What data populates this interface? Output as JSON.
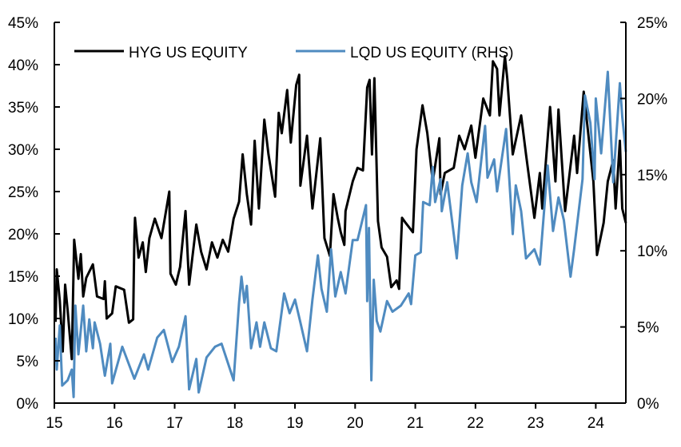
{
  "chart_data": {
    "type": "line",
    "title": "",
    "xlabel": "",
    "ylabel": "",
    "y2label": "",
    "xlim": [
      15,
      24.5
    ],
    "ylim": [
      0,
      45
    ],
    "y2lim": [
      0,
      25
    ],
    "grid": false,
    "legend_position": "top",
    "x_ticks": [
      "15",
      "16",
      "17",
      "18",
      "19",
      "20",
      "21",
      "22",
      "23",
      "24"
    ],
    "x_tick_values": [
      15,
      16,
      17,
      18,
      19,
      20,
      21,
      22,
      23,
      24
    ],
    "y_ticks": [
      "0%",
      "5%",
      "10%",
      "15%",
      "20%",
      "25%",
      "30%",
      "35%",
      "40%",
      "45%"
    ],
    "y_tick_values": [
      0,
      5,
      10,
      15,
      20,
      25,
      30,
      35,
      40,
      45
    ],
    "y2_ticks": [
      "0%",
      "5%",
      "10%",
      "15%",
      "20%",
      "25%"
    ],
    "y2_tick_values": [
      0,
      5,
      10,
      15,
      20,
      25
    ],
    "series": [
      {
        "name": "HYG US EQUITY",
        "axis": "left",
        "color": "#000000",
        "x": [
          15.02,
          15.04,
          15.09,
          15.14,
          15.18,
          15.22,
          15.29,
          15.33,
          15.4,
          15.44,
          15.48,
          15.53,
          15.64,
          15.71,
          15.82,
          15.84,
          15.87,
          15.96,
          16.02,
          16.16,
          16.24,
          16.31,
          16.33,
          16.34,
          16.4,
          16.47,
          16.52,
          16.58,
          16.67,
          16.78,
          16.91,
          16.93,
          17.02,
          17.09,
          17.18,
          17.24,
          17.36,
          17.44,
          17.53,
          17.62,
          17.71,
          17.8,
          17.89,
          17.98,
          18.07,
          18.13,
          18.2,
          18.27,
          18.33,
          18.4,
          18.49,
          18.56,
          18.67,
          18.73,
          18.78,
          18.87,
          18.93,
          19.02,
          19.07,
          19.09,
          19.2,
          19.29,
          19.42,
          19.49,
          19.58,
          19.64,
          19.71,
          19.76,
          19.82,
          19.84,
          19.96,
          20.04,
          20.13,
          20.2,
          20.24,
          20.28,
          20.32,
          20.38,
          20.44,
          20.53,
          20.6,
          20.69,
          20.73,
          20.78,
          20.84,
          20.96,
          21.02,
          21.12,
          21.2,
          21.29,
          21.4,
          21.42,
          21.49,
          21.64,
          21.73,
          21.82,
          21.93,
          22.0,
          22.13,
          22.24,
          22.29,
          22.36,
          22.4,
          22.49,
          22.53,
          22.62,
          22.76,
          22.84,
          22.98,
          23.07,
          23.11,
          23.24,
          23.33,
          23.38,
          23.49,
          23.64,
          23.69,
          23.8,
          23.96,
          24.02,
          24.13,
          24.2,
          24.29,
          24.33,
          24.4,
          24.44,
          24.5
        ],
        "values": [
          9.6,
          15.8,
          12.1,
          6.1,
          14,
          11,
          5.2,
          19.3,
          14.7,
          17.6,
          12.6,
          14.8,
          16.4,
          12.6,
          12.3,
          14.4,
          10,
          10.6,
          13.8,
          13.4,
          9.5,
          9.9,
          19.6,
          21.9,
          17.2,
          19,
          15.5,
          19.5,
          21.8,
          19.5,
          25,
          15.3,
          14,
          16.1,
          22.7,
          14,
          21.1,
          17.9,
          15.8,
          19,
          17.2,
          19.3,
          17.9,
          21.8,
          23.8,
          29.4,
          24.7,
          21.1,
          31,
          23,
          33.5,
          29.4,
          24.4,
          34.3,
          31.9,
          37,
          30.8,
          37.6,
          38.8,
          25.7,
          31.6,
          23,
          31.3,
          19.5,
          17.4,
          24.7,
          21.9,
          20.2,
          18.7,
          22.7,
          26.2,
          27.8,
          27.5,
          37.3,
          38.2,
          29.4,
          38.4,
          21.5,
          18.4,
          17.3,
          13.7,
          14.5,
          13.5,
          21.9,
          21.3,
          20.2,
          30,
          35.2,
          31.9,
          26.2,
          31.3,
          24.7,
          27.2,
          27.8,
          31.6,
          30,
          32.8,
          29,
          36,
          34,
          40.4,
          39.5,
          34,
          41,
          38.3,
          29.4,
          34,
          29.4,
          21.9,
          27.2,
          23,
          35,
          26.2,
          34.7,
          22.7,
          31.6,
          27.2,
          36.8,
          26.2,
          17.5,
          21.3,
          26.2,
          28.7,
          23,
          31,
          23,
          21.3
        ]
      },
      {
        "name": "LQD US EQUITY (RHS)",
        "axis": "right",
        "color": "#4f8bc0",
        "x": [
          15.02,
          15.04,
          15.09,
          15.13,
          15.22,
          15.29,
          15.32,
          15.35,
          15.4,
          15.48,
          15.53,
          15.58,
          15.64,
          15.67,
          15.76,
          15.84,
          15.93,
          15.96,
          16.13,
          16.33,
          16.49,
          16.56,
          16.71,
          16.82,
          16.96,
          17.07,
          17.18,
          17.24,
          17.36,
          17.4,
          17.53,
          17.67,
          17.78,
          17.98,
          18.07,
          18.11,
          18.16,
          18.2,
          18.27,
          18.36,
          18.42,
          18.49,
          18.6,
          18.69,
          18.82,
          18.91,
          19.0,
          19.09,
          19.2,
          19.29,
          19.38,
          19.44,
          19.53,
          19.6,
          19.67,
          19.76,
          19.84,
          19.96,
          20.04,
          20.18,
          20.2,
          20.23,
          20.27,
          20.31,
          20.36,
          20.42,
          20.53,
          20.62,
          20.76,
          20.89,
          20.93,
          21.0,
          21.09,
          21.13,
          21.24,
          21.29,
          21.33,
          21.42,
          21.44,
          21.53,
          21.69,
          21.78,
          21.87,
          21.93,
          22.02,
          22.16,
          22.2,
          22.31,
          22.36,
          22.51,
          22.62,
          22.67,
          22.76,
          22.84,
          22.98,
          23.07,
          23.2,
          23.29,
          23.38,
          23.47,
          23.58,
          23.64,
          23.78,
          23.82,
          23.91,
          23.98,
          24.0,
          24.09,
          24.2,
          24.29,
          24.4,
          24.44,
          24.5
        ],
        "values": [
          4.3,
          2.2,
          5.1,
          1.15,
          1.5,
          2.2,
          0.4,
          6.4,
          3.2,
          6.4,
          3.4,
          5.5,
          3.6,
          5.3,
          3.9,
          1.8,
          3.9,
          1.3,
          3.7,
          1.6,
          3.2,
          2.2,
          4.3,
          4.8,
          2.7,
          3.7,
          5.7,
          0.9,
          2.9,
          0.7,
          3.0,
          3.7,
          3.9,
          1.5,
          6.6,
          8.3,
          6.6,
          7.7,
          3.6,
          5.3,
          3.7,
          5.3,
          3.6,
          3.4,
          7.2,
          5.9,
          6.8,
          5.3,
          3.4,
          6.8,
          9.7,
          7.5,
          6.0,
          10.1,
          7.0,
          8.6,
          7.2,
          10.7,
          10.7,
          13.0,
          6.7,
          11.5,
          1.5,
          8.1,
          5.4,
          4.7,
          6.7,
          6.0,
          6.4,
          7.2,
          6.5,
          9.7,
          9.9,
          13.2,
          13.0,
          15.5,
          13.2,
          14.7,
          12.6,
          14.5,
          9.5,
          14.3,
          16.4,
          14.5,
          13.2,
          18.2,
          14.8,
          16.0,
          13.9,
          18.0,
          11.1,
          14.3,
          12.6,
          9.5,
          10.1,
          9.1,
          15.6,
          11.3,
          13.5,
          12.0,
          8.3,
          10.1,
          14.7,
          20.2,
          18.4,
          14.7,
          20.0,
          16.4,
          21.75,
          14.5,
          21.0,
          18.8,
          16.5
        ]
      }
    ]
  }
}
